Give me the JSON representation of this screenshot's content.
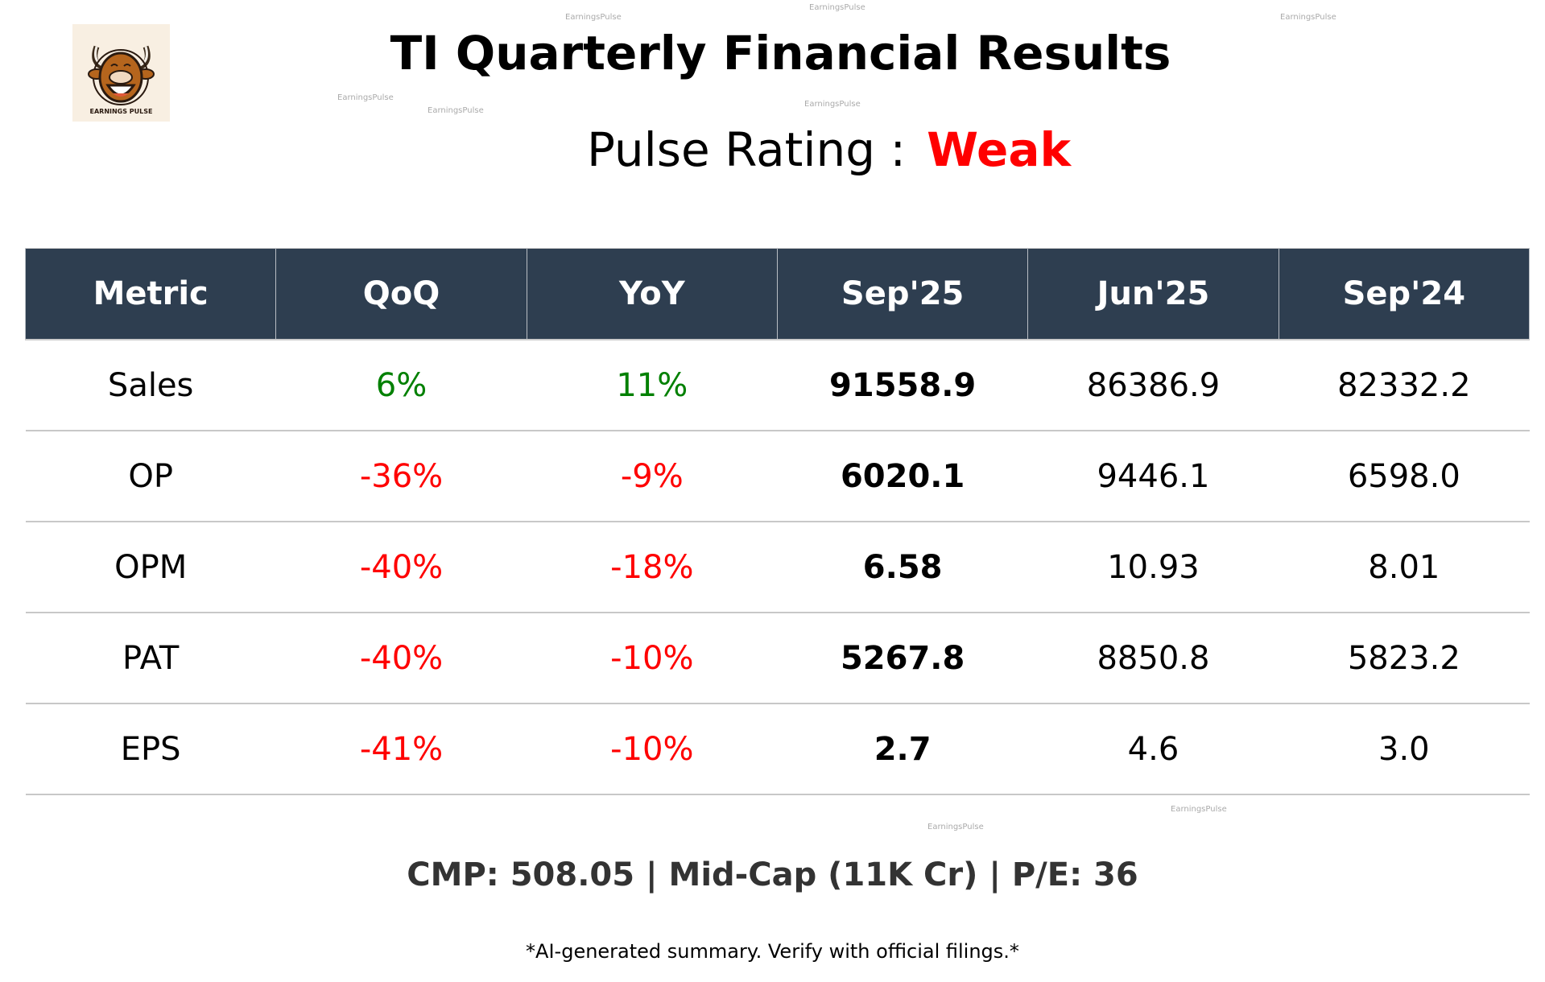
{
  "header": {
    "logo_text": "EARNINGS PULSE",
    "title": "TI Quarterly Financial Results",
    "rating_label": "Pulse Rating :",
    "rating_value": "Weak"
  },
  "colors": {
    "rating": "#ff0000",
    "positive": "#008000",
    "negative": "#ff0000",
    "header_bg": "#2e3e50"
  },
  "table": {
    "columns": [
      "Metric",
      "QoQ",
      "YoY",
      "Sep'25",
      "Jun'25",
      "Sep'24"
    ],
    "rows": [
      {
        "metric": "Sales",
        "qoq": "6%",
        "yoy": "11%",
        "c1": "91558.9",
        "c2": "86386.9",
        "c3": "82332.2",
        "qoq_sign": "positive",
        "yoy_sign": "positive"
      },
      {
        "metric": "OP",
        "qoq": "-36%",
        "yoy": "-9%",
        "c1": "6020.1",
        "c2": "9446.1",
        "c3": "6598.0",
        "qoq_sign": "negative",
        "yoy_sign": "negative"
      },
      {
        "metric": "OPM",
        "qoq": "-40%",
        "yoy": "-18%",
        "c1": "6.58",
        "c2": "10.93",
        "c3": "8.01",
        "qoq_sign": "negative",
        "yoy_sign": "negative"
      },
      {
        "metric": "PAT",
        "qoq": "-40%",
        "yoy": "-10%",
        "c1": "5267.8",
        "c2": "8850.8",
        "c3": "5823.2",
        "qoq_sign": "negative",
        "yoy_sign": "negative"
      },
      {
        "metric": "EPS",
        "qoq": "-41%",
        "yoy": "-10%",
        "c1": "2.7",
        "c2": "4.6",
        "c3": "3.0",
        "qoq_sign": "negative",
        "yoy_sign": "negative"
      }
    ]
  },
  "summary": "CMP: 508.05 | Mid-Cap (11K Cr) | P/E: 36",
  "disclaimer": "*AI-generated summary. Verify with official filings.*",
  "watermark": "EarningsPulse"
}
